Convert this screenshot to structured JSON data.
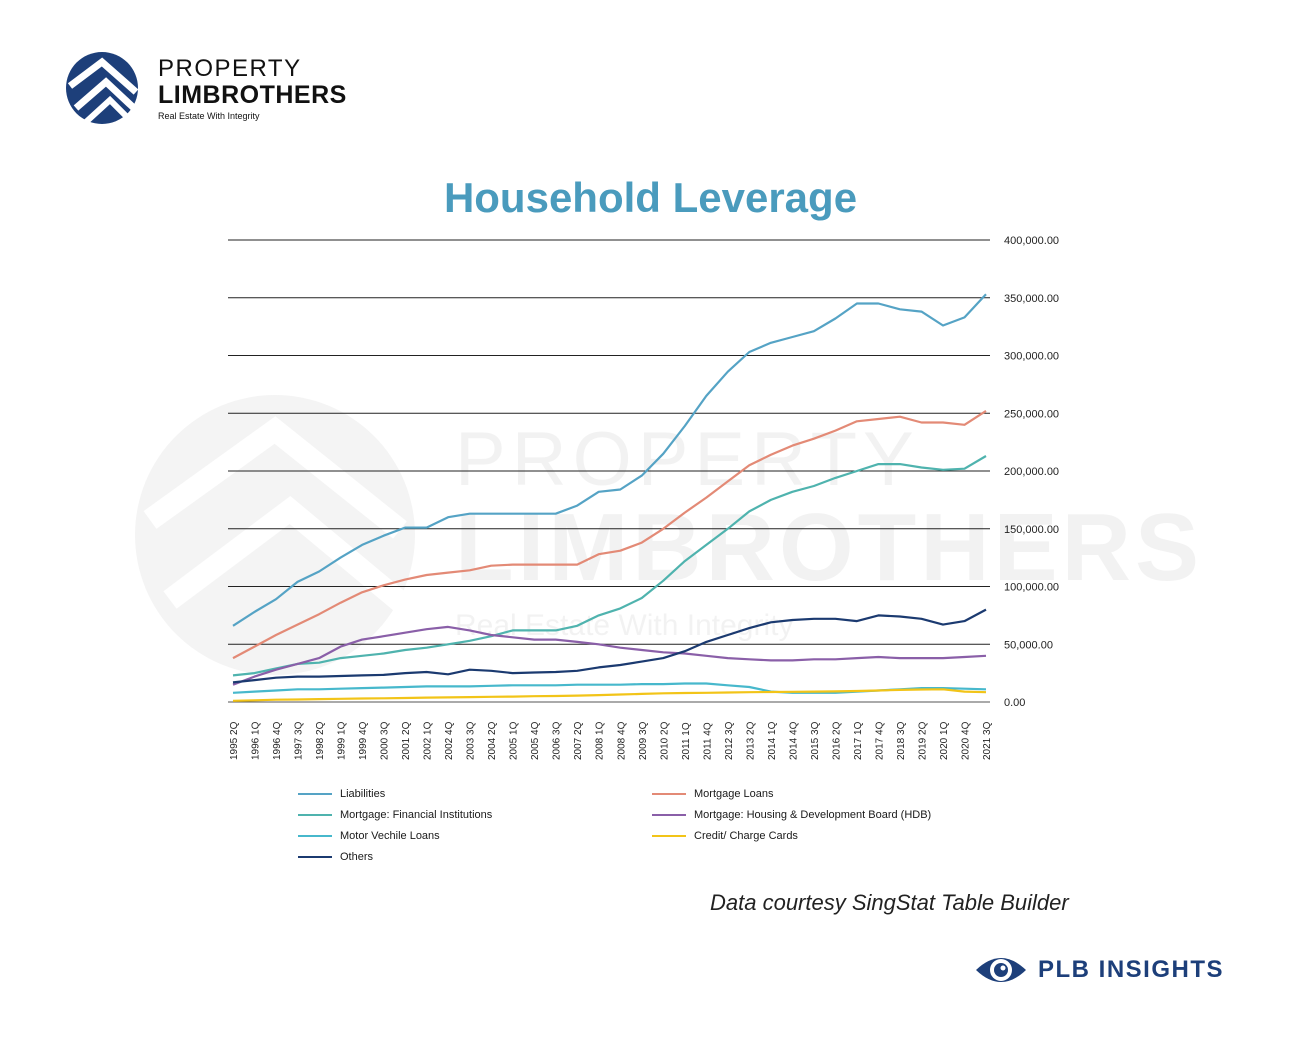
{
  "header": {
    "logo_line1": "PROPERTY",
    "logo_line2": "LIMBROTHERS",
    "logo_tagline": "Real Estate With Integrity"
  },
  "chart_title": "Household Leverage",
  "watermark": {
    "line1": "PROPERTY",
    "line2": "LIMBROTHERS",
    "line3": "Real Estate With Integrity"
  },
  "footer": {
    "credit": "Data courtesy SingStat Table Builder",
    "brand": "PLB INSIGHTS"
  },
  "colors": {
    "title": "#4a9bbd",
    "brand_navy": "#1d3f7a"
  },
  "chart_data": {
    "type": "line",
    "title": "Household Leverage",
    "xlabel": "",
    "ylabel": "",
    "ylim": [
      0,
      400000
    ],
    "y_ticks": [
      0,
      50000,
      100000,
      150000,
      200000,
      250000,
      300000,
      350000,
      400000
    ],
    "y_tick_labels": [
      "0.00",
      "50,000.00",
      "100,000.00",
      "150,000.00",
      "200,000.00",
      "250,000.00",
      "300,000.00",
      "350,000.00",
      "400,000.00"
    ],
    "y_axis_side": "right",
    "grid": true,
    "legend_position": "bottom",
    "x_tick_labels": [
      "1995 2Q",
      "1996 1Q",
      "1996 4Q",
      "1997 3Q",
      "1998 2Q",
      "1999 1Q",
      "1999 4Q",
      "2000 3Q",
      "2001 2Q",
      "2002 1Q",
      "2002 4Q",
      "2003 3Q",
      "2004 2Q",
      "2005 1Q",
      "2005 4Q",
      "2006 3Q",
      "2007 2Q",
      "2008 1Q",
      "2008 4Q",
      "2009 3Q",
      "2010 2Q",
      "2011 1Q",
      "2011 4Q",
      "2012 3Q",
      "2013 2Q",
      "2014 1Q",
      "2014 4Q",
      "2015 3Q",
      "2016 2Q",
      "2017 1Q",
      "2017 4Q",
      "2018 3Q",
      "2019 2Q",
      "2020 1Q",
      "2020 4Q",
      "2021 3Q"
    ],
    "series": [
      {
        "name": "Liabilities",
        "color": "#55a3c5",
        "values": [
          66000,
          78000,
          89000,
          104000,
          113000,
          125000,
          136000,
          144000,
          151000,
          151000,
          160000,
          163000,
          163000,
          163000,
          163000,
          163000,
          170000,
          182000,
          184000,
          196000,
          215000,
          239000,
          265000,
          286000,
          303000,
          311000,
          316000,
          321000,
          332000,
          345000,
          345000,
          340000,
          338000,
          326000,
          333000,
          353000
        ]
      },
      {
        "name": "Mortgage Loans",
        "color": "#e38a76",
        "values": [
          38000,
          48000,
          58000,
          67000,
          76000,
          86000,
          95000,
          101000,
          106000,
          110000,
          112000,
          114000,
          118000,
          119000,
          119000,
          119000,
          119000,
          128000,
          131000,
          138000,
          150000,
          164000,
          177000,
          191000,
          205000,
          214000,
          222000,
          228000,
          235000,
          243000,
          245000,
          247000,
          242000,
          242000,
          240000,
          252000
        ]
      },
      {
        "name": "Mortgage: Financial Institutions",
        "color": "#4fb3ae",
        "values": [
          23000,
          25000,
          29000,
          33000,
          34000,
          38000,
          40000,
          42000,
          45000,
          47000,
          50000,
          53000,
          57000,
          62000,
          62000,
          62000,
          66000,
          75000,
          81000,
          90000,
          105000,
          122000,
          136000,
          150000,
          165000,
          175000,
          182000,
          187000,
          194000,
          200000,
          206000,
          206000,
          203000,
          201000,
          202000,
          213000
        ]
      },
      {
        "name": "Mortgage: Housing & Development Board (HDB)",
        "color": "#8a5fa8",
        "values": [
          15000,
          22000,
          28000,
          33000,
          38000,
          48000,
          54000,
          57000,
          60000,
          63000,
          65000,
          62000,
          58000,
          56000,
          54000,
          54000,
          52000,
          50000,
          47000,
          45000,
          43000,
          42000,
          40000,
          38000,
          37000,
          36000,
          36000,
          37000,
          37000,
          38000,
          39000,
          38000,
          38000,
          38000,
          39000,
          40000
        ]
      },
      {
        "name": "Motor Vechile Loans",
        "color": "#47b8cc",
        "values": [
          8000,
          9000,
          10000,
          11000,
          11000,
          11500,
          12000,
          12500,
          13000,
          13500,
          13500,
          13500,
          14000,
          14500,
          14500,
          14500,
          15000,
          15000,
          15000,
          15500,
          15500,
          16000,
          16000,
          14500,
          13000,
          9000,
          8000,
          8000,
          8000,
          9000,
          10000,
          11000,
          12000,
          12000,
          11500,
          11000
        ]
      },
      {
        "name": "Credit/ Charge Cards",
        "color": "#f2c418",
        "values": [
          1000,
          1500,
          2000,
          2200,
          2500,
          2800,
          3000,
          3200,
          3500,
          3800,
          4000,
          4200,
          4500,
          4700,
          5000,
          5200,
          5500,
          6000,
          6500,
          7000,
          7500,
          7800,
          8000,
          8200,
          8500,
          8700,
          8800,
          9000,
          9200,
          9500,
          10000,
          10500,
          10800,
          11000,
          9000,
          8500
        ]
      },
      {
        "name": "Others",
        "color": "#1b3a70",
        "values": [
          17000,
          19000,
          21000,
          22000,
          22000,
          22500,
          23000,
          23500,
          25000,
          26000,
          24000,
          28000,
          27000,
          25000,
          25500,
          26000,
          27000,
          30000,
          32000,
          35000,
          38000,
          44000,
          52000,
          58000,
          64000,
          69000,
          71000,
          72000,
          72000,
          70000,
          75000,
          74000,
          72000,
          67000,
          70000,
          80000
        ]
      }
    ]
  }
}
